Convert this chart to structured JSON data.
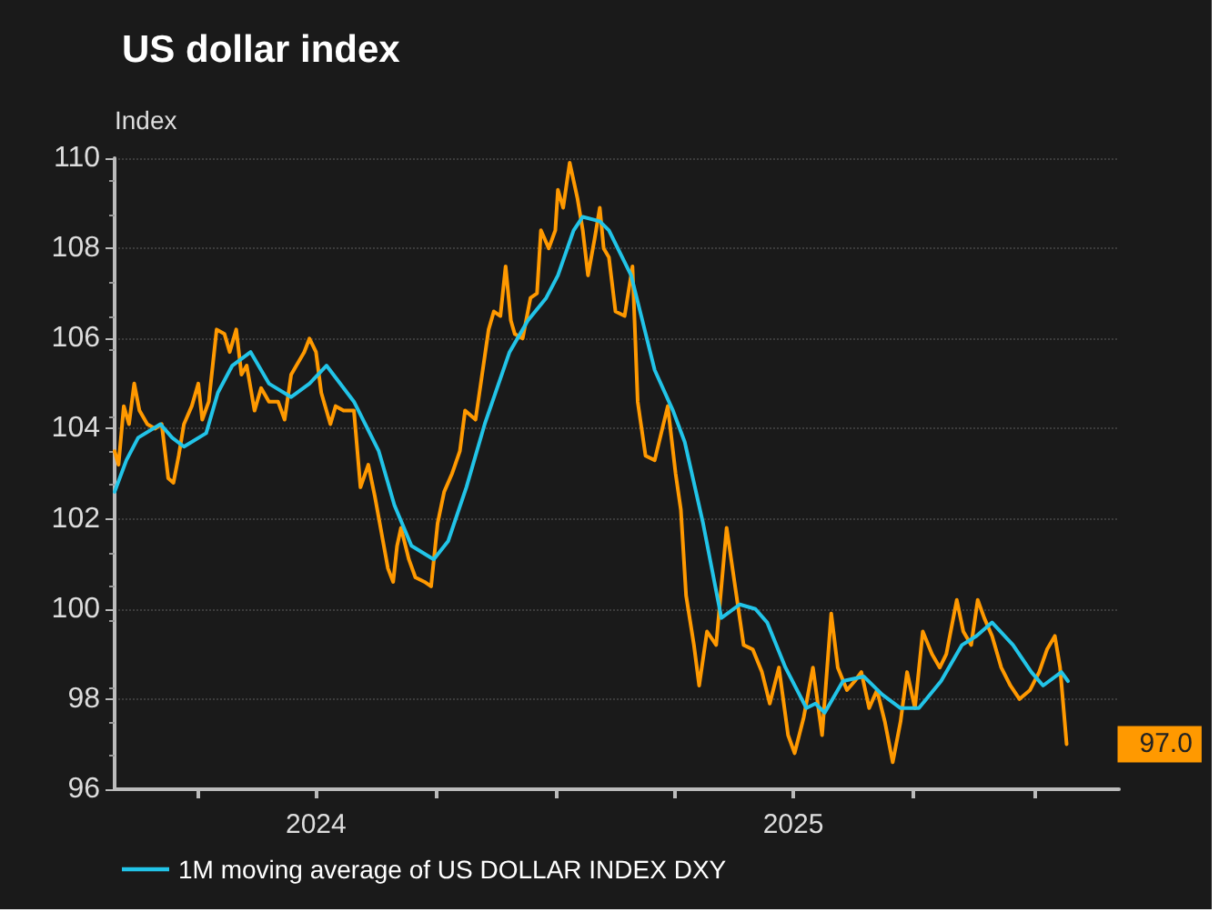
{
  "chart_data": {
    "type": "line",
    "title": "US dollar index",
    "ylabel": "Index",
    "xlim": [
      "2024-01-29",
      "2026-03-07"
    ],
    "ylim": [
      96,
      110
    ],
    "yticks": [
      96,
      98,
      100,
      102,
      104,
      106,
      108,
      110
    ],
    "xticks": [
      {
        "value": "2024-04-01",
        "label": null
      },
      {
        "value": "2024-07-01",
        "label": "2024"
      },
      {
        "value": "2024-10-01",
        "label": null
      },
      {
        "value": "2025-01-01",
        "label": null
      },
      {
        "value": "2025-04-01",
        "label": null
      },
      {
        "value": "2025-07-01",
        "label": "2025"
      },
      {
        "value": "2025-10-01",
        "label": null
      },
      {
        "value": "2026-01-01",
        "label": null
      }
    ],
    "grid": "y",
    "legend": "bottom",
    "marker": "none",
    "line_style": "solid",
    "annotations": [
      {
        "text": "97.0",
        "x": "2026-01-26",
        "y": 97.0
      }
    ],
    "series": [
      {
        "color": "#ff9900",
        "x": [
          "2024-01-29",
          "2024-02-01",
          "2024-02-05",
          "2024-02-09",
          "2024-02-13",
          "2024-02-17",
          "2024-02-23",
          "2024-02-29",
          "2024-03-05",
          "2024-03-10",
          "2024-03-14",
          "2024-03-18",
          "2024-03-22",
          "2024-03-28",
          "2024-04-02",
          "2024-04-05",
          "2024-04-10",
          "2024-04-13",
          "2024-04-16",
          "2024-04-22",
          "2024-04-26",
          "2024-05-01",
          "2024-05-05",
          "2024-05-09",
          "2024-05-15",
          "2024-05-20",
          "2024-05-26",
          "2024-06-02",
          "2024-06-07",
          "2024-06-12",
          "2024-06-16",
          "2024-06-22",
          "2024-06-26",
          "2024-07-01",
          "2024-07-05",
          "2024-07-12",
          "2024-07-16",
          "2024-07-22",
          "2024-07-30",
          "2024-08-04",
          "2024-08-10",
          "2024-08-15",
          "2024-08-20",
          "2024-08-25",
          "2024-08-29",
          "2024-09-01",
          "2024-09-04",
          "2024-09-10",
          "2024-09-15",
          "2024-09-22",
          "2024-09-27",
          "2024-10-02",
          "2024-10-07",
          "2024-10-13",
          "2024-10-19",
          "2024-10-23",
          "2024-10-31",
          "2024-11-05",
          "2024-11-10",
          "2024-11-14",
          "2024-11-19",
          "2024-11-23",
          "2024-11-27",
          "2024-11-30",
          "2024-12-06",
          "2024-12-12",
          "2024-12-17",
          "2024-12-20",
          "2024-12-26",
          "2024-12-31",
          "2025-01-02",
          "2025-01-06",
          "2025-01-11",
          "2025-01-17",
          "2025-01-21",
          "2025-01-25",
          "2025-01-30",
          "2025-02-03",
          "2025-02-06",
          "2025-02-10",
          "2025-02-15",
          "2025-02-22",
          "2025-02-28",
          "2025-03-04",
          "2025-03-10",
          "2025-03-17",
          "2025-03-27",
          "2025-04-02",
          "2025-04-06",
          "2025-04-10",
          "2025-04-16",
          "2025-04-20",
          "2025-04-26",
          "2025-05-03",
          "2025-05-11",
          "2025-05-17",
          "2025-05-24",
          "2025-05-31",
          "2025-06-07",
          "2025-06-13",
          "2025-06-20",
          "2025-06-27",
          "2025-07-02",
          "2025-07-09",
          "2025-07-16",
          "2025-07-23",
          "2025-07-30",
          "2025-08-04",
          "2025-08-11",
          "2025-08-17",
          "2025-08-22",
          "2025-08-28",
          "2025-09-03",
          "2025-09-09",
          "2025-09-15",
          "2025-09-21",
          "2025-09-26",
          "2025-10-02",
          "2025-10-08",
          "2025-10-15",
          "2025-10-21",
          "2025-10-26",
          "2025-11-03",
          "2025-11-08",
          "2025-11-14",
          "2025-11-19",
          "2025-11-24",
          "2025-11-30",
          "2025-12-07",
          "2025-12-14",
          "2025-12-21",
          "2025-12-29",
          "2026-01-05",
          "2026-01-11",
          "2026-01-17",
          "2026-01-21",
          "2026-01-26"
        ],
        "values": [
          103.5,
          103.2,
          104.5,
          104.1,
          105.0,
          104.4,
          104.1,
          104.0,
          104.1,
          102.9,
          102.8,
          103.4,
          104.1,
          104.5,
          105.0,
          104.2,
          104.6,
          105.4,
          106.2,
          106.1,
          105.7,
          106.2,
          105.2,
          105.4,
          104.4,
          104.9,
          104.6,
          104.6,
          104.2,
          105.2,
          105.4,
          105.7,
          106.0,
          105.7,
          104.8,
          104.1,
          104.5,
          104.4,
          104.4,
          102.7,
          103.2,
          102.5,
          101.7,
          100.9,
          100.6,
          101.4,
          101.8,
          101.1,
          100.7,
          100.6,
          100.5,
          101.9,
          102.6,
          103.0,
          103.5,
          104.4,
          104.2,
          105.2,
          106.2,
          106.6,
          106.5,
          107.6,
          106.4,
          106.1,
          106.0,
          106.9,
          107.0,
          108.4,
          108.0,
          108.4,
          109.3,
          108.9,
          109.9,
          109.1,
          108.4,
          107.4,
          108.2,
          108.9,
          108.0,
          107.8,
          106.6,
          106.5,
          107.6,
          104.6,
          103.4,
          103.3,
          104.5,
          103.0,
          102.2,
          100.3,
          99.2,
          98.3,
          99.5,
          99.2,
          101.8,
          100.6,
          99.2,
          99.1,
          98.6,
          97.9,
          98.7,
          97.2,
          96.8,
          97.6,
          98.7,
          97.2,
          99.9,
          98.7,
          98.2,
          98.4,
          98.6,
          97.8,
          98.2,
          97.5,
          96.6,
          97.5,
          98.6,
          97.8,
          99.5,
          99.0,
          98.7,
          99.0,
          100.2,
          99.5,
          99.2,
          100.2,
          99.8,
          99.4,
          98.7,
          98.3,
          98.0,
          98.2,
          98.6,
          99.1,
          99.4,
          98.7,
          97.0
        ]
      },
      {
        "name": "1M moving average of US DOLLAR INDEX DXY",
        "color": "#22c4e8",
        "x": [
          "2024-01-29",
          "2024-02-07",
          "2024-02-16",
          "2024-03-04",
          "2024-03-13",
          "2024-03-22",
          "2024-04-08",
          "2024-04-17",
          "2024-04-28",
          "2024-05-12",
          "2024-05-26",
          "2024-06-12",
          "2024-06-26",
          "2024-07-09",
          "2024-07-30",
          "2024-08-18",
          "2024-08-30",
          "2024-09-12",
          "2024-09-29",
          "2024-10-10",
          "2024-10-24",
          "2024-11-07",
          "2024-11-26",
          "2024-12-10",
          "2024-12-24",
          "2025-01-02",
          "2025-01-14",
          "2025-01-21",
          "2025-02-03",
          "2025-02-10",
          "2025-02-27",
          "2025-03-17",
          "2025-03-31",
          "2025-04-09",
          "2025-04-23",
          "2025-05-07",
          "2025-05-21",
          "2025-06-02",
          "2025-06-11",
          "2025-06-25",
          "2025-07-11",
          "2025-07-18",
          "2025-07-25",
          "2025-08-08",
          "2025-08-24",
          "2025-09-07",
          "2025-09-21",
          "2025-10-05",
          "2025-10-22",
          "2025-11-07",
          "2025-11-18",
          "2025-11-30",
          "2025-12-16",
          "2025-12-30",
          "2026-01-08",
          "2026-01-22",
          "2026-01-27"
        ],
        "values": [
          102.6,
          103.3,
          103.8,
          104.1,
          103.8,
          103.6,
          103.9,
          104.8,
          105.4,
          105.7,
          105.0,
          104.7,
          105.0,
          105.4,
          104.6,
          103.5,
          102.3,
          101.4,
          101.1,
          101.5,
          102.7,
          104.1,
          105.7,
          106.4,
          106.9,
          107.4,
          108.4,
          108.7,
          108.6,
          108.4,
          107.4,
          105.3,
          104.4,
          103.7,
          101.9,
          99.8,
          100.1,
          100.0,
          99.7,
          98.7,
          97.8,
          97.9,
          97.7,
          98.4,
          98.5,
          98.1,
          97.8,
          97.8,
          98.4,
          99.2,
          99.4,
          99.7,
          99.2,
          98.6,
          98.3,
          98.6,
          98.4
        ]
      }
    ]
  }
}
